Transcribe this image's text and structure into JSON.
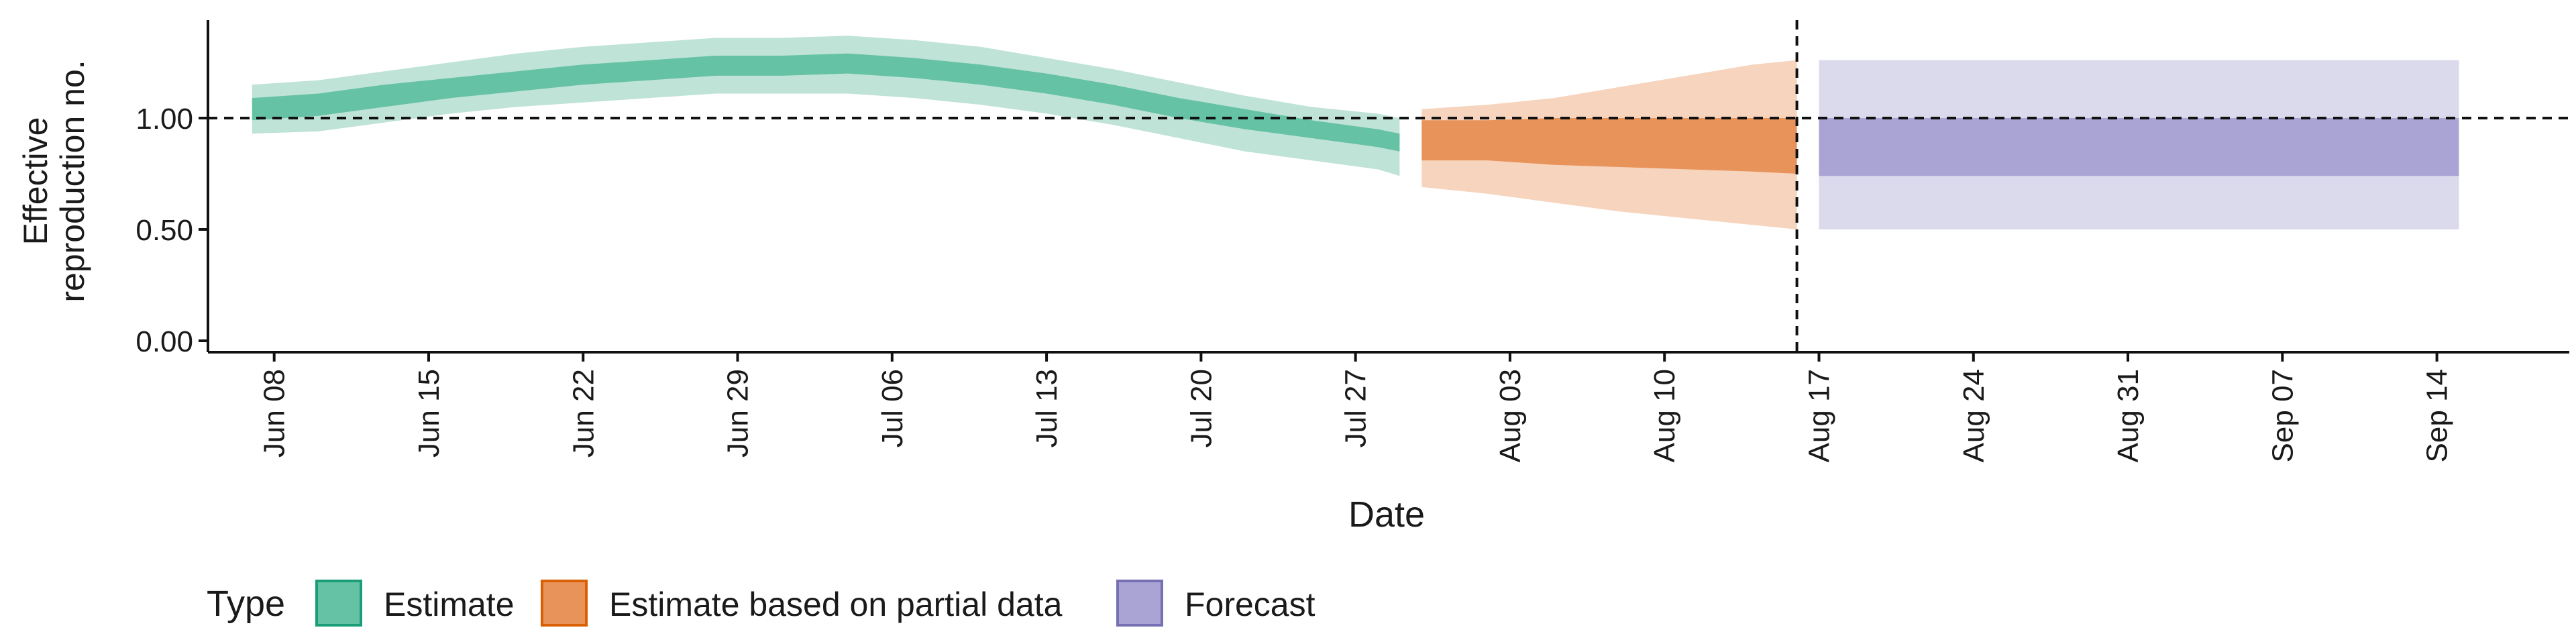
{
  "chart_data": {
    "type": "area",
    "xlabel": "Date",
    "ylabel_lines": [
      "Effective",
      "reproduction no."
    ],
    "y_ticks": [
      0.0,
      0.5,
      1.0
    ],
    "y_tick_labels": [
      "0.00",
      "0.50",
      "1.00"
    ],
    "ylim": [
      -0.05,
      1.45
    ],
    "xlim": [
      "2020-06-05",
      "2020-09-20"
    ],
    "x_ticks": [
      "2020-06-08",
      "2020-06-15",
      "2020-06-22",
      "2020-06-29",
      "2020-07-06",
      "2020-07-13",
      "2020-07-20",
      "2020-07-27",
      "2020-08-03",
      "2020-08-10",
      "2020-08-17",
      "2020-08-24",
      "2020-08-31",
      "2020-09-07",
      "2020-09-14"
    ],
    "x_tick_labels": [
      "Jun 08",
      "Jun 15",
      "Jun 22",
      "Jun 29",
      "Jul 06",
      "Jul 13",
      "Jul 20",
      "Jul 27",
      "Aug 03",
      "Aug 10",
      "Aug 17",
      "Aug 24",
      "Aug 31",
      "Sep 07",
      "Sep 14"
    ],
    "reference_line_y": 1.0,
    "vertical_line_x": "2020-08-16",
    "legend": {
      "title": "Type",
      "position": "bottom-left",
      "items": [
        {
          "label": "Estimate",
          "fill": "#66c2a5",
          "border": "#1b9e77"
        },
        {
          "label": "Estimate based on partial data",
          "fill": "#e8935a",
          "border": "#d95f02"
        },
        {
          "label": "Forecast",
          "fill": "#a9a4d3",
          "border": "#7570b3"
        }
      ]
    },
    "series": [
      {
        "name": "Estimate",
        "color": "#1b9e77",
        "x": [
          "2020-06-07",
          "2020-06-10",
          "2020-06-13",
          "2020-06-16",
          "2020-06-19",
          "2020-06-22",
          "2020-06-25",
          "2020-06-28",
          "2020-07-01",
          "2020-07-04",
          "2020-07-07",
          "2020-07-10",
          "2020-07-13",
          "2020-07-16",
          "2020-07-19",
          "2020-07-22",
          "2020-07-25",
          "2020-07-28",
          "2020-07-29"
        ],
        "median_low": [
          0.99,
          1.01,
          1.05,
          1.09,
          1.12,
          1.15,
          1.17,
          1.19,
          1.19,
          1.2,
          1.18,
          1.15,
          1.11,
          1.06,
          1.0,
          0.95,
          0.91,
          0.87,
          0.85
        ],
        "median_high": [
          1.09,
          1.11,
          1.15,
          1.18,
          1.21,
          1.24,
          1.26,
          1.28,
          1.28,
          1.29,
          1.27,
          1.24,
          1.2,
          1.15,
          1.09,
          1.04,
          0.99,
          0.95,
          0.93
        ],
        "ci_low": [
          0.93,
          0.94,
          0.98,
          1.02,
          1.05,
          1.07,
          1.09,
          1.11,
          1.11,
          1.11,
          1.09,
          1.06,
          1.02,
          0.97,
          0.91,
          0.85,
          0.81,
          0.77,
          0.74
        ],
        "ci_high": [
          1.15,
          1.17,
          1.21,
          1.25,
          1.29,
          1.32,
          1.34,
          1.36,
          1.36,
          1.37,
          1.35,
          1.32,
          1.27,
          1.22,
          1.16,
          1.1,
          1.05,
          1.02,
          1.0
        ]
      },
      {
        "name": "Estimate based on partial data",
        "color": "#d95f02",
        "x": [
          "2020-07-30",
          "2020-08-02",
          "2020-08-05",
          "2020-08-08",
          "2020-08-11",
          "2020-08-14",
          "2020-08-16"
        ],
        "median_low": [
          0.81,
          0.81,
          0.79,
          0.78,
          0.77,
          0.76,
          0.75
        ],
        "median_high": [
          0.99,
          0.99,
          1.0,
          1.0,
          1.0,
          1.0,
          1.0
        ],
        "ci_low": [
          0.69,
          0.66,
          0.62,
          0.58,
          0.55,
          0.52,
          0.5
        ],
        "ci_high": [
          1.04,
          1.06,
          1.09,
          1.14,
          1.19,
          1.24,
          1.26
        ]
      },
      {
        "name": "Forecast",
        "color": "#7570b3",
        "x": [
          "2020-08-17",
          "2020-09-15"
        ],
        "median_low": [
          0.74,
          0.74
        ],
        "median_high": [
          1.0,
          1.0
        ],
        "ci_low": [
          0.5,
          0.5
        ],
        "ci_high": [
          1.26,
          1.26
        ]
      }
    ]
  }
}
